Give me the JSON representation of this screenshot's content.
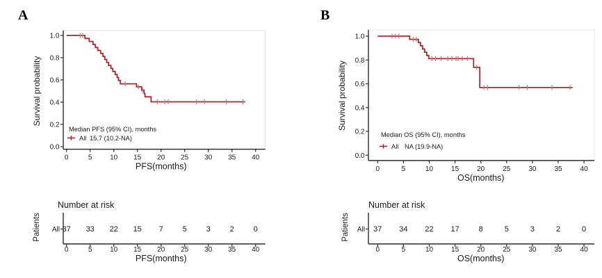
{
  "figure": {
    "background": "#ffffff"
  },
  "colors": {
    "curve": "#9E2B2F",
    "censor": "#C47A7C",
    "risk_row_label": "#C0504D",
    "axis": "#2B2B2B",
    "text": "#1A1A1A",
    "panel_border": "#E3E3E3"
  },
  "chart_data": [
    {
      "type": "line",
      "subtype": "kaplan_meier_step",
      "panel_label": "A",
      "title": "",
      "xlabel": "PFS(months)",
      "ylabel": "Survival probability",
      "xlim": [
        0,
        42
      ],
      "ylim": [
        0,
        1.0
      ],
      "grid": false,
      "xticks": [
        0,
        5,
        10,
        15,
        20,
        25,
        30,
        35,
        40
      ],
      "yticks": [
        0,
        0.2,
        0.4,
        0.6,
        0.8,
        1.0
      ],
      "ytick_labels": [
        "0.0",
        "0.2",
        "0.4",
        "0.6",
        "0.8",
        "1.0"
      ],
      "legend": {
        "position": "inside-bottom-left",
        "title": "Median PFS (95% CI), months",
        "entries": [
          {
            "label": "All",
            "value": "15.7 (10.2-NA)"
          }
        ]
      },
      "series": [
        {
          "name": "All",
          "start": [
            0,
            1.0
          ],
          "end_time": 37.8,
          "events": [
            [
              3.9,
              0.973
            ],
            [
              4.8,
              0.946
            ],
            [
              5.6,
              0.919
            ],
            [
              6.1,
              0.892
            ],
            [
              6.6,
              0.865
            ],
            [
              7.2,
              0.838
            ],
            [
              7.7,
              0.811
            ],
            [
              8.1,
              0.784
            ],
            [
              8.5,
              0.757
            ],
            [
              8.9,
              0.73
            ],
            [
              9.4,
              0.703
            ],
            [
              9.8,
              0.676
            ],
            [
              10.3,
              0.649
            ],
            [
              10.7,
              0.622
            ],
            [
              11.0,
              0.595
            ],
            [
              11.4,
              0.565
            ],
            [
              14.8,
              0.538
            ],
            [
              15.9,
              0.508
            ],
            [
              16.4,
              0.478
            ],
            [
              16.6,
              0.448
            ],
            [
              17.9,
              0.403
            ]
          ],
          "censors": [
            [
              2.9,
              1
            ],
            [
              3.4,
              1
            ],
            [
              12.4,
              0.565
            ],
            [
              15.2,
              0.538
            ],
            [
              16.1,
              0.508
            ],
            [
              19.2,
              0.403
            ],
            [
              20.8,
              0.403
            ],
            [
              21.5,
              0.403
            ],
            [
              27.5,
              0.403
            ],
            [
              29.2,
              0.403
            ],
            [
              33.8,
              0.403
            ],
            [
              37.3,
              0.403
            ]
          ]
        }
      ],
      "risk_table": {
        "title": "Number at risk",
        "axis_label": "Patients",
        "xlabel": "PFS(months)",
        "times": [
          0,
          5,
          10,
          15,
          20,
          25,
          30,
          35,
          40
        ],
        "rows": [
          {
            "label": "All",
            "values": [
              37,
              33,
              22,
              15,
              7,
              5,
              3,
              2,
              0
            ]
          }
        ]
      }
    },
    {
      "type": "line",
      "subtype": "kaplan_meier_step",
      "panel_label": "B",
      "title": "",
      "xlabel": "OS(months)",
      "ylabel": "Survival probability",
      "xlim": [
        0,
        42
      ],
      "ylim": [
        0,
        1.0
      ],
      "grid": false,
      "xticks": [
        0,
        5,
        10,
        15,
        20,
        25,
        30,
        35,
        40
      ],
      "yticks": [
        0,
        0.2,
        0.4,
        0.6,
        0.8,
        1.0
      ],
      "ytick_labels": [
        "0.0",
        "0.2",
        "0.4",
        "0.6",
        "0.8",
        "1.0"
      ],
      "legend": {
        "position": "inside-bottom-left",
        "title": "Median OS (95% CI), months",
        "entries": [
          {
            "label": "All",
            "value": "NA (19.9-NA)"
          }
        ]
      },
      "series": [
        {
          "name": "All",
          "start": [
            0,
            1.0
          ],
          "end_time": 37.8,
          "events": [
            [
              6.2,
              0.973
            ],
            [
              7.9,
              0.946
            ],
            [
              8.3,
              0.919
            ],
            [
              8.7,
              0.892
            ],
            [
              9.1,
              0.865
            ],
            [
              9.5,
              0.838
            ],
            [
              9.9,
              0.811
            ],
            [
              18.6,
              0.738
            ],
            [
              19.8,
              0.568
            ]
          ],
          "censors": [
            [
              2.8,
              1
            ],
            [
              3.4,
              1
            ],
            [
              4.1,
              1
            ],
            [
              6.9,
              0.973
            ],
            [
              7.5,
              0.973
            ],
            [
              10.5,
              0.811
            ],
            [
              11.2,
              0.811
            ],
            [
              12.3,
              0.811
            ],
            [
              13.6,
              0.811
            ],
            [
              14.4,
              0.811
            ],
            [
              15.2,
              0.811
            ],
            [
              15.6,
              0.811
            ],
            [
              16.4,
              0.811
            ],
            [
              17.4,
              0.811
            ],
            [
              19.2,
              0.738
            ],
            [
              20.6,
              0.568
            ],
            [
              21.3,
              0.568
            ],
            [
              27.4,
              0.568
            ],
            [
              29.0,
              0.568
            ],
            [
              33.8,
              0.568
            ],
            [
              37.3,
              0.568
            ]
          ]
        }
      ],
      "risk_table": {
        "title": "Number at risk",
        "axis_label": "Patients",
        "xlabel": "OS(months)",
        "times": [
          0,
          5,
          10,
          15,
          20,
          25,
          30,
          35,
          40
        ],
        "rows": [
          {
            "label": "All",
            "values": [
              37,
              34,
              22,
              17,
              8,
              5,
              3,
              2,
              0
            ]
          }
        ]
      }
    }
  ]
}
